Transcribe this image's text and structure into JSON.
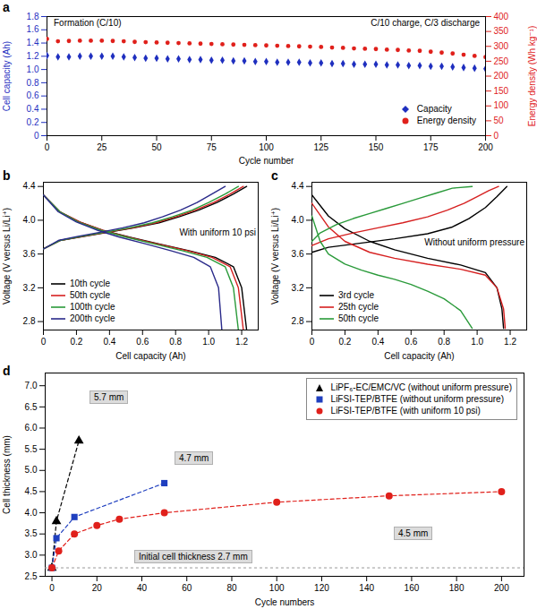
{
  "chart_data": [
    {
      "type": "scatter",
      "title": "a",
      "xlabel": "Cycle number",
      "ylabel": "Cell capacity (Ah)",
      "y2label": "Energy density (Wh kg⁻¹)",
      "annotations": [
        "Formation (C/10)",
        "C/10 charge, C/3 discharge"
      ],
      "x": [
        0,
        5,
        10,
        15,
        20,
        25,
        30,
        35,
        40,
        45,
        50,
        55,
        60,
        65,
        70,
        75,
        80,
        85,
        90,
        95,
        100,
        105,
        110,
        115,
        120,
        125,
        130,
        135,
        140,
        145,
        150,
        155,
        160,
        165,
        170,
        175,
        180,
        185,
        190,
        195,
        200
      ],
      "series": [
        {
          "name": "Capacity",
          "color": "#1f2fbf",
          "marker": "diamond",
          "values": [
            1.21,
            1.19,
            1.19,
            1.2,
            1.2,
            1.2,
            1.2,
            1.19,
            1.18,
            1.17,
            1.17,
            1.16,
            1.16,
            1.15,
            1.15,
            1.14,
            1.14,
            1.13,
            1.13,
            1.12,
            1.12,
            1.11,
            1.11,
            1.11,
            1.1,
            1.1,
            1.09,
            1.09,
            1.08,
            1.08,
            1.08,
            1.07,
            1.07,
            1.06,
            1.06,
            1.05,
            1.05,
            1.04,
            1.03,
            1.02,
            1.01
          ]
        },
        {
          "name": "Energy density",
          "color": "#e0201b",
          "marker": "circle",
          "axis": "y2",
          "values": [
            325,
            317,
            318,
            319,
            319,
            319,
            318,
            317,
            315,
            314,
            313,
            312,
            311,
            310,
            309,
            308,
            307,
            306,
            305,
            304,
            303,
            302,
            301,
            300,
            299,
            298,
            296,
            295,
            293,
            292,
            291,
            289,
            288,
            286,
            285,
            282,
            279,
            276,
            272,
            268,
            264
          ]
        }
      ],
      "xlim": [
        0,
        200
      ],
      "xticks": [
        0,
        25,
        50,
        75,
        100,
        125,
        150,
        175,
        200
      ],
      "ylim": [
        0,
        1.8
      ],
      "yticks": [
        0,
        0.2,
        0.4,
        0.6,
        0.8,
        {
          "value": 1,
          "label": "1.0"
        },
        1.2,
        1.4,
        1.6,
        1.8
      ],
      "y2lim": [
        0,
        400
      ],
      "y2ticks": [
        0,
        50,
        100,
        150,
        200,
        250,
        300,
        350,
        400
      ],
      "legend": "bottom-right",
      "grid": false
    },
    {
      "type": "line",
      "title": "b",
      "xlabel": "Cell capacity (Ah)",
      "ylabel": "Voltage (V versus Li/Li⁺)",
      "annotations": [
        "With uniform 10 psi"
      ],
      "series": [
        {
          "name": "10th cycle",
          "color": "#000000",
          "line_style": "solid",
          "x": [
            0,
            0.1,
            0.25,
            0.4,
            0.55,
            0.7,
            0.82,
            0.94,
            1.05,
            1.15,
            1.23,
            null,
            0,
            0.1,
            0.22,
            0.36,
            0.52,
            0.7,
            0.88,
            1.04,
            1.15,
            1.2,
            1.23
          ],
          "values": [
            3.66,
            3.76,
            3.81,
            3.86,
            3.91,
            3.97,
            4.04,
            4.12,
            4.21,
            4.31,
            4.4,
            null,
            4.3,
            4.1,
            3.98,
            3.88,
            3.8,
            3.72,
            3.64,
            3.56,
            3.45,
            3.2,
            2.7
          ]
        },
        {
          "name": "50th cycle",
          "color": "#d62020",
          "line_style": "solid",
          "x": [
            0,
            0.1,
            0.24,
            0.39,
            0.54,
            0.68,
            0.8,
            0.92,
            1.03,
            1.13,
            1.21,
            null,
            0,
            0.1,
            0.22,
            0.36,
            0.51,
            0.69,
            0.87,
            1.02,
            1.13,
            1.18,
            1.21
          ],
          "values": [
            3.66,
            3.76,
            3.81,
            3.86,
            3.91,
            3.97,
            4.04,
            4.12,
            4.21,
            4.31,
            4.4,
            null,
            4.3,
            4.1,
            3.98,
            3.88,
            3.8,
            3.72,
            3.64,
            3.56,
            3.45,
            3.2,
            2.7
          ]
        },
        {
          "name": "100th cycle",
          "color": "#2a9a3a",
          "line_style": "solid",
          "x": [
            0,
            0.1,
            0.23,
            0.38,
            0.52,
            0.66,
            0.78,
            0.9,
            1.0,
            1.1,
            1.18,
            null,
            0,
            0.1,
            0.21,
            0.35,
            0.5,
            0.67,
            0.84,
            0.99,
            1.1,
            1.15,
            1.18
          ],
          "values": [
            3.66,
            3.76,
            3.81,
            3.86,
            3.91,
            3.97,
            4.04,
            4.12,
            4.21,
            4.31,
            4.4,
            null,
            4.3,
            4.1,
            3.98,
            3.88,
            3.8,
            3.72,
            3.64,
            3.56,
            3.45,
            3.2,
            2.7
          ]
        },
        {
          "name": "200th cycle",
          "color": "#2a2a8a",
          "line_style": "solid",
          "x": [
            0,
            0.09,
            0.21,
            0.35,
            0.48,
            0.61,
            0.72,
            0.83,
            0.93,
            1.02,
            1.1,
            null,
            0,
            0.09,
            0.2,
            0.33,
            0.46,
            0.62,
            0.77,
            0.91,
            1.01,
            1.06,
            1.08
          ],
          "values": [
            3.66,
            3.76,
            3.81,
            3.86,
            3.91,
            3.97,
            4.04,
            4.12,
            4.21,
            4.31,
            4.4,
            null,
            4.3,
            4.1,
            3.98,
            3.88,
            3.8,
            3.72,
            3.64,
            3.56,
            3.45,
            3.2,
            2.7
          ]
        }
      ],
      "xlim": [
        0,
        1.3
      ],
      "xticks": [
        0,
        0.2,
        0.4,
        0.6,
        0.8,
        {
          "value": 1,
          "label": "1.0"
        },
        1.2
      ],
      "ylim": [
        2.7,
        4.45
      ],
      "yticks": [
        2.8,
        3.2,
        3.6,
        {
          "value": 4,
          "label": "4.0"
        },
        4.4
      ],
      "legend": "bottom-left",
      "grid": false
    },
    {
      "type": "line",
      "title": "c",
      "xlabel": "Cell capacity (Ah)",
      "ylabel": "Voltage (V versus Li/Li⁺)",
      "annotations": [
        "Without uniform pressure"
      ],
      "series": [
        {
          "name": "3rd cycle",
          "color": "#000000",
          "line_style": "solid",
          "x": [
            0,
            0.1,
            0.3,
            0.5,
            0.7,
            0.85,
            0.95,
            1.05,
            1.12,
            1.18,
            null,
            0,
            0.1,
            0.2,
            0.35,
            0.5,
            0.7,
            0.9,
            1.05,
            1.12,
            1.15,
            1.16
          ],
          "values": [
            3.62,
            3.68,
            3.73,
            3.78,
            3.84,
            3.92,
            4.02,
            4.15,
            4.28,
            4.4,
            null,
            4.3,
            4.05,
            3.9,
            3.75,
            3.65,
            3.55,
            3.47,
            3.38,
            3.2,
            2.95,
            2.72
          ]
        },
        {
          "name": "25th cycle",
          "color": "#d62020",
          "line_style": "solid",
          "x": [
            0,
            0.1,
            0.25,
            0.4,
            0.55,
            0.7,
            0.82,
            0.92,
            1.0,
            1.07,
            1.13,
            null,
            0,
            0.1,
            0.2,
            0.35,
            0.5,
            0.7,
            0.9,
            1.05,
            1.12,
            1.16,
            1.17
          ],
          "values": [
            3.7,
            3.78,
            3.85,
            3.91,
            3.97,
            4.04,
            4.12,
            4.2,
            4.28,
            4.35,
            4.4,
            null,
            4.2,
            3.92,
            3.75,
            3.62,
            3.55,
            3.48,
            3.42,
            3.35,
            3.2,
            2.95,
            2.72
          ]
        },
        {
          "name": "50th cycle",
          "color": "#2a9a3a",
          "line_style": "solid",
          "x": [
            0,
            0.05,
            0.15,
            0.25,
            0.35,
            0.45,
            0.55,
            0.65,
            0.75,
            0.85,
            0.97,
            null,
            0,
            0.05,
            0.1,
            0.2,
            0.3,
            0.4,
            0.5,
            0.6,
            0.7,
            0.8,
            0.9,
            0.97
          ],
          "values": [
            3.75,
            3.85,
            3.95,
            4.02,
            4.08,
            4.14,
            4.2,
            4.26,
            4.32,
            4.38,
            4.4,
            null,
            4.05,
            3.75,
            3.6,
            3.48,
            3.41,
            3.35,
            3.3,
            3.24,
            3.16,
            3.07,
            2.93,
            2.72
          ]
        }
      ],
      "xlim": [
        0,
        1.3
      ],
      "xticks": [
        0,
        0.2,
        0.4,
        0.6,
        0.8,
        {
          "value": 1,
          "label": "1.0"
        },
        1.2
      ],
      "ylim": [
        2.7,
        4.45
      ],
      "yticks": [
        2.8,
        3.2,
        3.6,
        {
          "value": 4,
          "label": "4.0"
        },
        4.4
      ],
      "legend": "bottom-left",
      "grid": false
    },
    {
      "type": "line",
      "title": "d",
      "xlabel": "Cycle numbers",
      "ylabel": "Cell thickness (mm)",
      "annotations": [
        "5.7 mm",
        "4.7 mm",
        "4.5 mm",
        "Initial cell thickness 2.7 mm"
      ],
      "initial_thickness": 2.7,
      "series": [
        {
          "name": "LiPF₆-EC/EMC/VC (without uniform pressure)",
          "color": "#000000",
          "marker": "triangle",
          "line_style": "dashed",
          "x": [
            0,
            2,
            12
          ],
          "values": [
            2.7,
            3.8,
            5.7
          ]
        },
        {
          "name": "LiFSI-TEP/BTFE (without uniform pressure)",
          "color": "#1f3fbf",
          "marker": "square",
          "line_style": "dashed",
          "x": [
            0,
            2,
            10,
            50
          ],
          "values": [
            2.7,
            3.4,
            3.9,
            4.7
          ]
        },
        {
          "name": "LiFSI-TEP/BTFE (with uniform 10 psi)",
          "color": "#e0201b",
          "marker": "circle",
          "line_style": "dashed",
          "x": [
            0,
            3,
            10,
            20,
            30,
            50,
            100,
            150,
            200
          ],
          "values": [
            2.7,
            3.1,
            3.5,
            3.7,
            3.85,
            4.0,
            4.25,
            4.4,
            4.5
          ]
        }
      ],
      "xlim": [
        -3,
        210
      ],
      "xticks": [
        0,
        20,
        40,
        60,
        80,
        100,
        120,
        140,
        160,
        180,
        200
      ],
      "ylim": [
        2.5,
        7.3
      ],
      "yticks": [
        2.5,
        {
          "value": 3,
          "label": "3.0"
        },
        3.5,
        {
          "value": 4,
          "label": "4.0"
        },
        4.5,
        {
          "value": 5,
          "label": "5.0"
        },
        5.5,
        {
          "value": 6,
          "label": "6.0"
        },
        6.5,
        {
          "value": 7,
          "label": "7.0"
        }
      ],
      "legend": "top-right",
      "grid": false
    }
  ]
}
